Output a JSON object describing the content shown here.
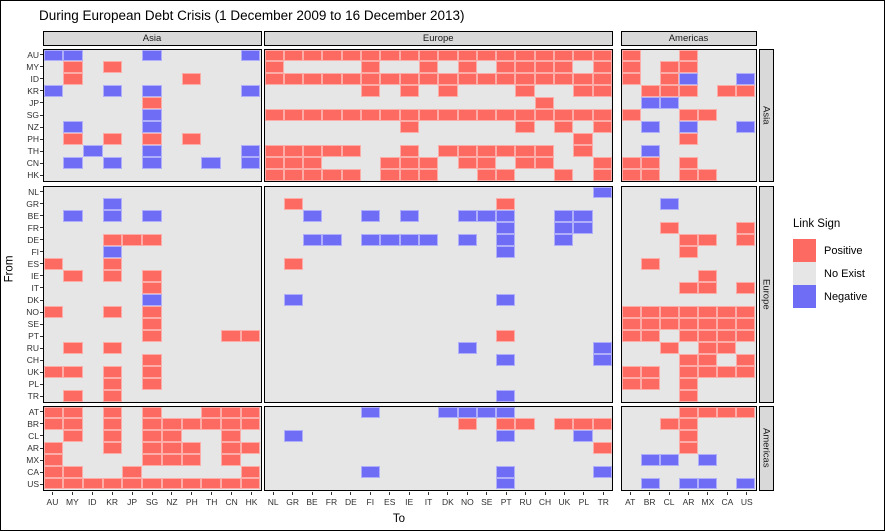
{
  "title": "During European Debt Crisis (1 December 2009 to 16 December 2013)",
  "chart_data": {
    "type": "heatmap",
    "title": "During European Debt Crisis (1 December 2009 to 16 December 2013)",
    "xlabel": "To",
    "ylabel": "From",
    "legend": {
      "title": "Link Sign",
      "position": "right",
      "entries": [
        {
          "label": "Positive",
          "color": "#FC6A62",
          "code": "P"
        },
        {
          "label": "No Exist",
          "color": "#E6E6E6",
          "code": "."
        },
        {
          "label": "Negative",
          "color": "#6F6DF5",
          "code": "N"
        }
      ]
    },
    "facet_col_groups": [
      "Asia",
      "Europe",
      "Americas"
    ],
    "facet_row_groups": [
      "Asia",
      "Europe",
      "Americas"
    ],
    "columns": {
      "Asia": [
        "AU",
        "MY",
        "ID",
        "KR",
        "JP",
        "SG",
        "NZ",
        "PH",
        "TH",
        "CN",
        "HK"
      ],
      "Europe": [
        "NL",
        "GR",
        "BE",
        "FR",
        "DE",
        "FI",
        "ES",
        "IE",
        "IT",
        "DK",
        "NO",
        "SE",
        "PT",
        "RU",
        "CH",
        "UK",
        "PL",
        "TR"
      ],
      "Americas": [
        "AT",
        "BR",
        "CL",
        "AR",
        "MX",
        "CA",
        "US"
      ]
    },
    "cell_encoding": {
      "P": "Positive",
      "N": "Negative",
      ".": "No Exist"
    },
    "rows": [
      {
        "group": "Asia",
        "code": "AU",
        "Asia": "NN...N....N",
        "Europe": "PPPPPPPPPPPPPPPPPP",
        "Americas": "P..P..."
      },
      {
        "group": "Asia",
        "code": "MY",
        "Asia": ".P.P.......",
        "Europe": "P....P..P.P.PPPP.P",
        "Americas": "P.PP..."
      },
      {
        "group": "Asia",
        "code": "ID",
        "Asia": ".P.....P...",
        "Europe": "PPPPPPPPPPPPPPPPPP",
        "Americas": "P.PN..N"
      },
      {
        "group": "Asia",
        "code": "KR",
        "Asia": "N..N.N....N",
        "Europe": ".....P.P.P...P..PP",
        "Americas": ".PPP.PP"
      },
      {
        "group": "Asia",
        "code": "JP",
        "Asia": ".....P.....",
        "Europe": "..............P...",
        "Americas": ".NN...."
      },
      {
        "group": "Asia",
        "code": "SG",
        "Asia": ".....N.....",
        "Europe": "PPPPPPPPPPPPPPPPPP",
        "Americas": "P..PP.."
      },
      {
        "group": "Asia",
        "code": "NZ",
        "Asia": ".N...N.....",
        "Europe": ".......P.....P.P.P",
        "Americas": ".N.N..N"
      },
      {
        "group": "Asia",
        "code": "PH",
        "Asia": ".P.P.P.P...",
        "Europe": "................P.",
        "Americas": "...P..."
      },
      {
        "group": "Asia",
        "code": "TH",
        "Asia": "..N..N....N",
        "Europe": "PPPPP..P.PPPPPP.P.",
        "Americas": ".N....."
      },
      {
        "group": "Asia",
        "code": "CN",
        "Asia": ".N.N.N..N.N",
        "Europe": "PPP...PPP.PP.PP..P",
        "Americas": "PP.P..."
      },
      {
        "group": "Asia",
        "code": "HK",
        "Asia": "...........",
        "Europe": "PPPPP.PPP..PP..P.P",
        "Americas": "PP.PP.."
      },
      {
        "group": "Europe",
        "code": "NL",
        "Asia": "...........",
        "Europe": ".................N",
        "Americas": "......."
      },
      {
        "group": "Europe",
        "code": "GR",
        "Asia": "...N.......",
        "Europe": ".P..........P.....",
        "Americas": "..N...."
      },
      {
        "group": "Europe",
        "code": "BE",
        "Asia": ".N.N.N.....",
        "Europe": "..N..N.N..NNN..NN.",
        "Americas": "......."
      },
      {
        "group": "Europe",
        "code": "FR",
        "Asia": "...........",
        "Europe": "............N..NN.",
        "Americas": "..P...P"
      },
      {
        "group": "Europe",
        "code": "DE",
        "Asia": "...PPP.....",
        "Europe": "..NN.NNNN.N.N..N..",
        "Americas": "...PP.P"
      },
      {
        "group": "Europe",
        "code": "FI",
        "Asia": "...N.......",
        "Europe": "............N.....",
        "Americas": "...P..."
      },
      {
        "group": "Europe",
        "code": "ES",
        "Asia": "P..P.......",
        "Europe": ".P................",
        "Americas": ".P....."
      },
      {
        "group": "Europe",
        "code": "IE",
        "Asia": ".P.P.P.....",
        "Europe": "..................",
        "Americas": "....P.."
      },
      {
        "group": "Europe",
        "code": "IT",
        "Asia": ".....P.....",
        "Europe": "..................",
        "Americas": "...PP.P"
      },
      {
        "group": "Europe",
        "code": "DK",
        "Asia": ".....N.....",
        "Europe": ".N..........N.....",
        "Americas": "......."
      },
      {
        "group": "Europe",
        "code": "NO",
        "Asia": "P..P.P.....",
        "Europe": "..................",
        "Americas": "PPPPPPP"
      },
      {
        "group": "Europe",
        "code": "SE",
        "Asia": ".....P.....",
        "Europe": "..................",
        "Americas": "PPPPPPP"
      },
      {
        "group": "Europe",
        "code": "PT",
        "Asia": ".....P...PP",
        "Europe": "............P.....",
        "Americas": "PP.PPPP"
      },
      {
        "group": "Europe",
        "code": "RU",
        "Asia": ".P.P.......",
        "Europe": "..........N......N",
        "Americas": "..P.PP."
      },
      {
        "group": "Europe",
        "code": "CH",
        "Asia": ".....P.....",
        "Europe": "............N....N",
        "Americas": "...PP.P"
      },
      {
        "group": "Europe",
        "code": "UK",
        "Asia": "PP.P.P.....",
        "Europe": "..................",
        "Americas": "PP.PPPP"
      },
      {
        "group": "Europe",
        "code": "PL",
        "Asia": "...P.P.....",
        "Europe": "..................",
        "Americas": "PP.P..."
      },
      {
        "group": "Europe",
        "code": "TR",
        "Asia": ".P.P.......",
        "Europe": "............N.....",
        "Americas": "...P..."
      },
      {
        "group": "Americas",
        "code": "AT",
        "Asia": "PP.P.P..PPP",
        "Europe": ".....N...NNNN.....",
        "Americas": "...PPPP"
      },
      {
        "group": "Americas",
        "code": "BR",
        "Asia": "PP.P.PPPPPP",
        "Europe": "..........P.PP.PPP",
        "Americas": "..PP..."
      },
      {
        "group": "Americas",
        "code": "CL",
        "Asia": ".P.P.PP..P.",
        "Europe": ".N..........N...N.",
        "Americas": "...P..."
      },
      {
        "group": "Americas",
        "code": "AR",
        "Asia": "P..P.PPP.PP",
        "Europe": ".................P",
        "Americas": "...P..."
      },
      {
        "group": "Americas",
        "code": "MX",
        "Asia": "P....PPP.P.",
        "Europe": "..................",
        "Americas": ".NN.N.."
      },
      {
        "group": "Americas",
        "code": "CA",
        "Asia": "PP..P.....P",
        "Europe": ".....N......N....N",
        "Americas": "......."
      },
      {
        "group": "Americas",
        "code": "US",
        "Asia": "PPPPPPPPPPP",
        "Europe": "............N.....",
        "Americas": ".N.NN.N"
      }
    ]
  }
}
